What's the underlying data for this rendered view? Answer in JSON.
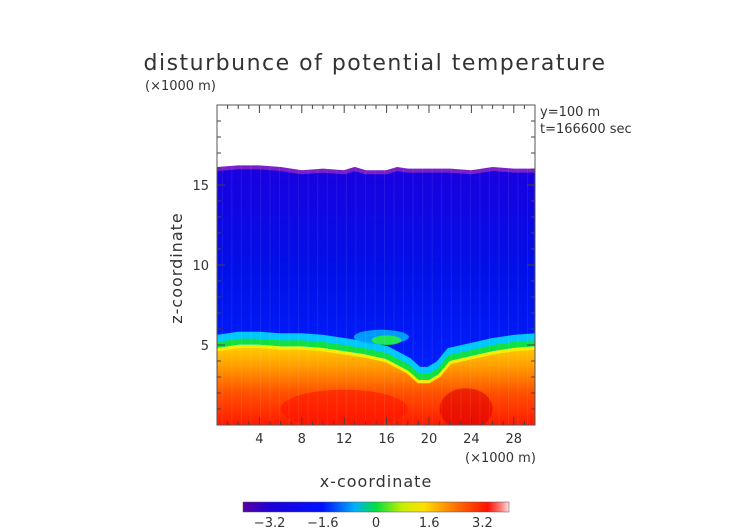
{
  "chart_data": {
    "type": "heatmap",
    "title": "disturbunce of potential temperature",
    "unit_label": "(×1000 m)",
    "xlabel": "x-coordinate",
    "ylabel": "z-coordinate",
    "x_unit_label": "(×1000 m)",
    "annotations": [
      "y=100 m",
      "t=166600 sec"
    ],
    "xlim": [
      0,
      30
    ],
    "ylim": [
      0,
      20
    ],
    "xticks": [
      4,
      8,
      12,
      16,
      20,
      24,
      28
    ],
    "yticks": [
      5,
      10,
      15
    ],
    "colorbar": {
      "min": -4.0,
      "max": 4.0,
      "ticks": [
        -3.2,
        -1.6,
        0,
        1.6,
        3.2
      ],
      "tick_labels": [
        "−3.2",
        "−1.6",
        "0",
        "1.6",
        "3.2"
      ]
    },
    "field": {
      "top_boundary_z": [
        [
          0,
          16.0
        ],
        [
          2,
          16.1
        ],
        [
          4,
          16.1
        ],
        [
          6,
          16.0
        ],
        [
          8,
          15.8
        ],
        [
          10,
          15.9
        ],
        [
          12,
          15.8
        ],
        [
          13,
          16.0
        ],
        [
          14,
          15.8
        ],
        [
          16,
          15.8
        ],
        [
          17,
          16.0
        ],
        [
          18,
          15.9
        ],
        [
          20,
          15.9
        ],
        [
          22,
          15.9
        ],
        [
          24,
          15.8
        ],
        [
          26,
          16.0
        ],
        [
          28,
          15.9
        ],
        [
          30,
          15.9
        ]
      ],
      "green_layer_z": [
        [
          0,
          5.0
        ],
        [
          2,
          5.2
        ],
        [
          4,
          5.2
        ],
        [
          6,
          5.1
        ],
        [
          8,
          5.1
        ],
        [
          10,
          5.0
        ],
        [
          12,
          4.8
        ],
        [
          14,
          4.6
        ],
        [
          16,
          4.3
        ],
        [
          18,
          3.6
        ],
        [
          19,
          3.0
        ],
        [
          20,
          3.0
        ],
        [
          21,
          3.4
        ],
        [
          22,
          4.2
        ],
        [
          24,
          4.5
        ],
        [
          26,
          4.8
        ],
        [
          28,
          5.0
        ],
        [
          30,
          5.1
        ]
      ],
      "interior_value": -3.0,
      "surface_value": 3.6
    }
  }
}
